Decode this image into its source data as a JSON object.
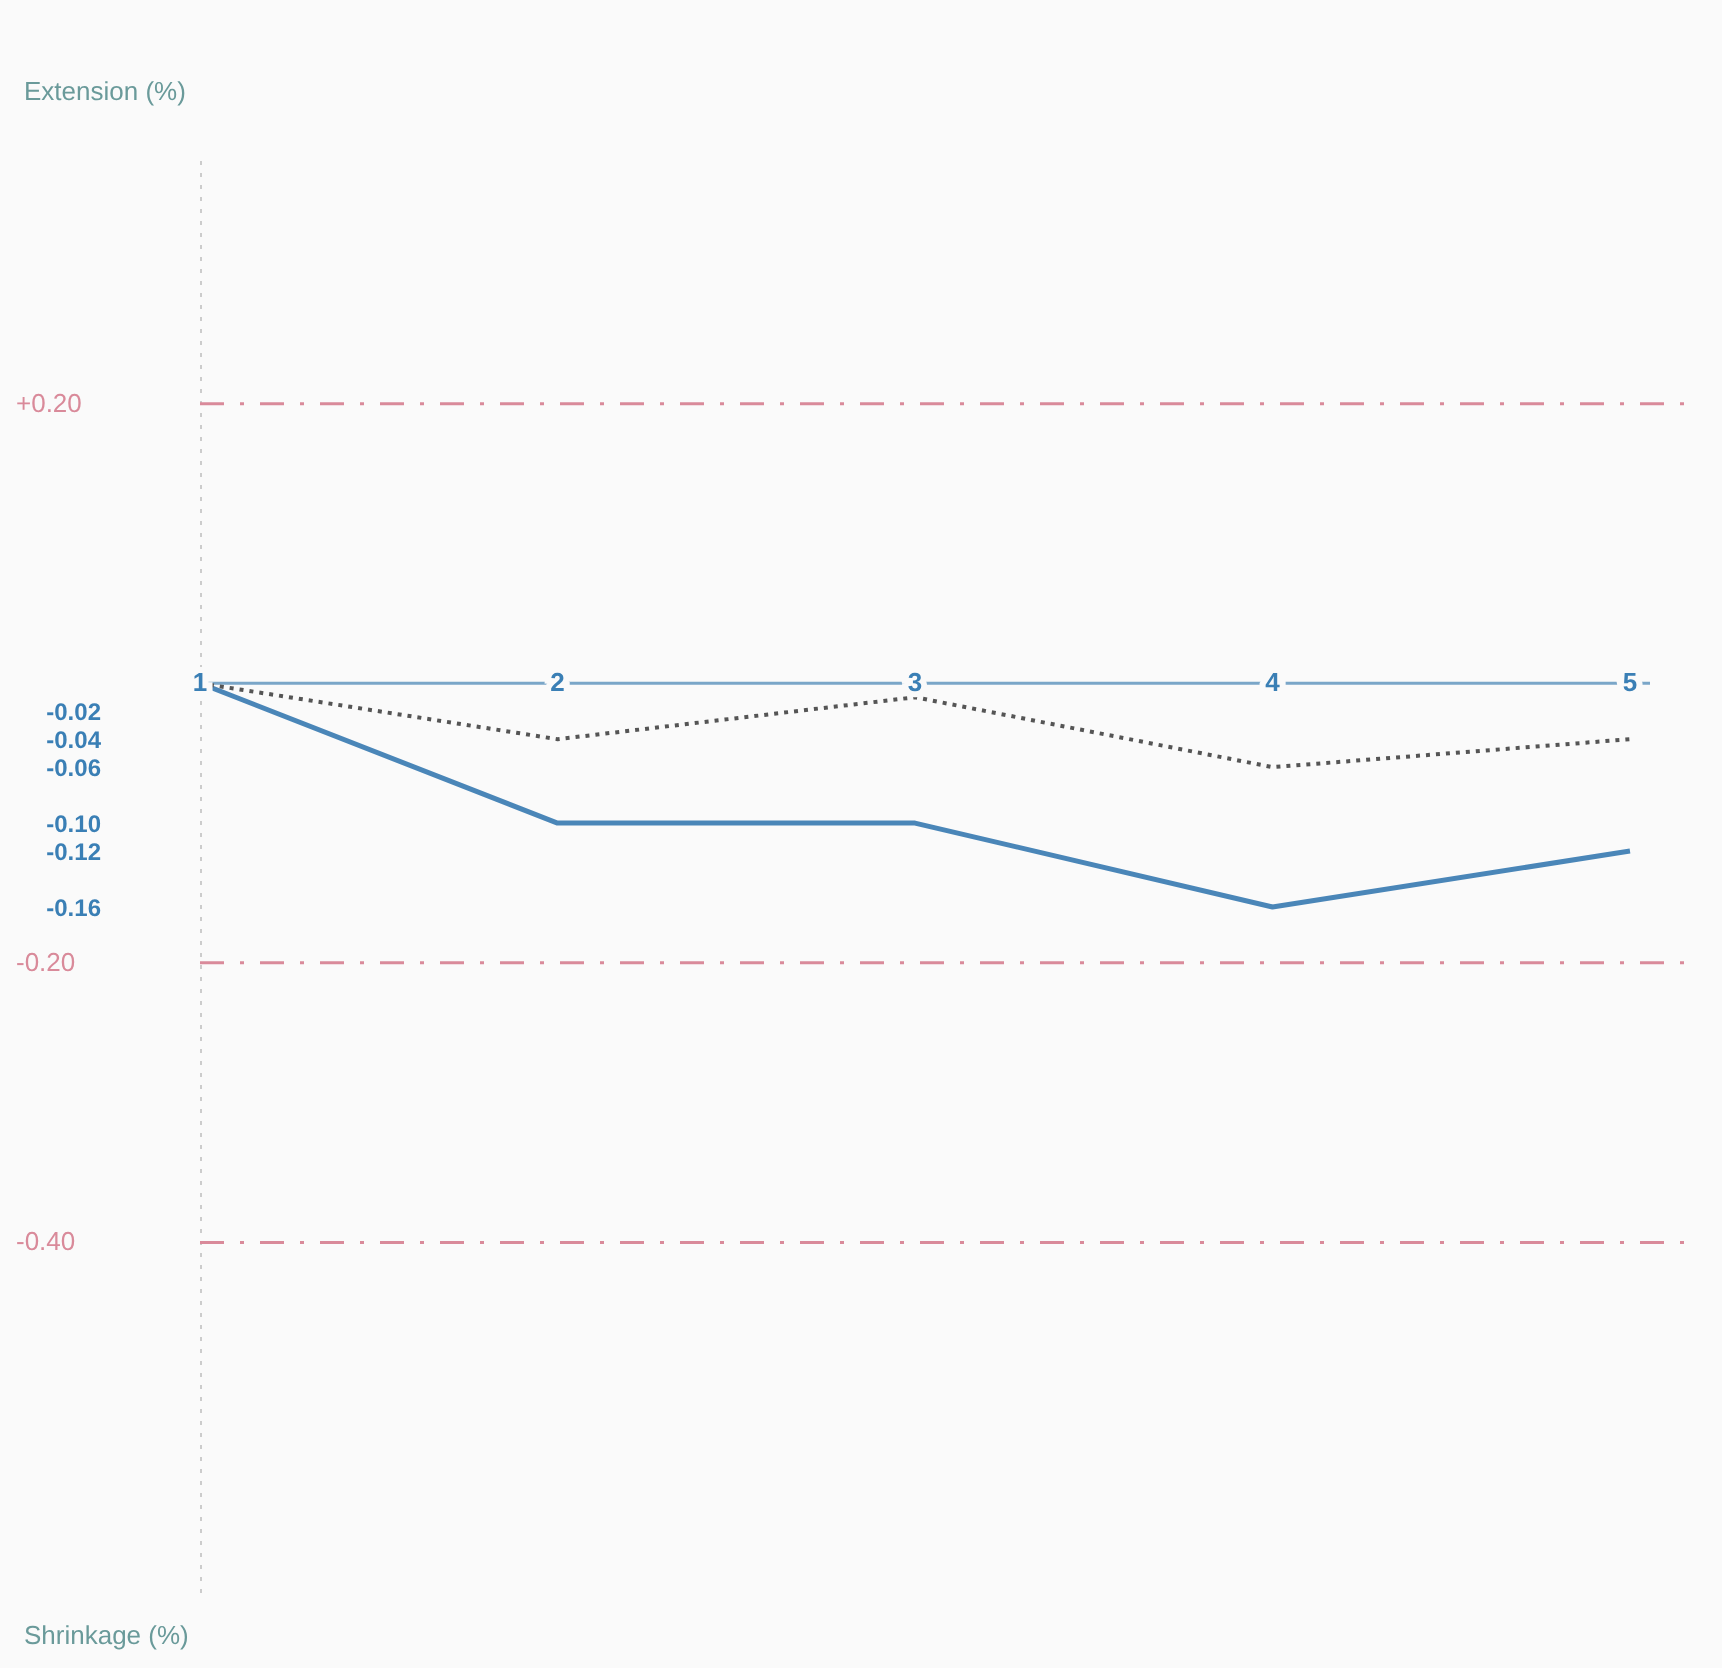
{
  "chart_data": {
    "type": "line",
    "ylabel": "Extension (%)",
    "annotations": [
      "Shrinkage (%)"
    ],
    "categories": [
      "1",
      "2",
      "3",
      "4",
      "5"
    ],
    "series": [
      {
        "color": "#4a86b8",
        "line_style": "solid",
        "values": [
          0,
          -0.1,
          -0.1,
          -0.16,
          -0.12
        ]
      },
      {
        "color": "#555555",
        "line_style": "dotted",
        "values": [
          0,
          -0.04,
          -0.01,
          -0.06,
          -0.04
        ]
      }
    ],
    "ylim": [
      -0.65,
      0.38
    ],
    "yticks": [
      {
        "value": -0.02,
        "label": "-0.02"
      },
      {
        "value": -0.04,
        "label": "-0.04"
      },
      {
        "value": -0.06,
        "label": "-0.06"
      },
      {
        "value": -0.1,
        "label": "-0.10"
      },
      {
        "value": -0.12,
        "label": "-0.12"
      },
      {
        "value": -0.16,
        "label": "-0.16"
      }
    ],
    "ref_lines": [
      {
        "axis": "y",
        "value": 0.2,
        "label": "+0.20",
        "color": "#d98a9a",
        "line_style": "dashdot"
      },
      {
        "axis": "y",
        "value": -0.2,
        "label": "-0.20",
        "color": "#d98a9a",
        "line_style": "dashdot"
      },
      {
        "axis": "y",
        "value": -0.4,
        "label": "-0.40",
        "color": "#d98a9a",
        "line_style": "dashdot"
      }
    ],
    "grid": false,
    "marker": "none"
  }
}
